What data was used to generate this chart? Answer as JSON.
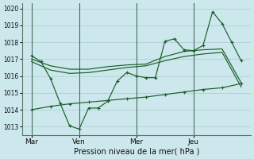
{
  "xlabel": "Pression niveau de la mer( hPa )",
  "bg_color": "#cce8ec",
  "grid_color": "#b0ced4",
  "line_color": "#1a5e2a",
  "ylim": [
    1012.5,
    1020.3
  ],
  "xtick_labels": [
    "Mar",
    "Ven",
    "Mer",
    "Jeu"
  ],
  "xtick_positions": [
    0.5,
    3.0,
    6.0,
    9.0
  ],
  "ytick_vals": [
    1013,
    1014,
    1015,
    1016,
    1017,
    1018,
    1019,
    1020
  ],
  "vlines_x": [
    0.5,
    3.0,
    6.0,
    9.0
  ],
  "series1_x": [
    0.5,
    1.0,
    1.5,
    2.0,
    2.5,
    3.0,
    3.5,
    4.0,
    4.5,
    5.0,
    5.5,
    6.0,
    6.5,
    7.0,
    7.5,
    8.0,
    8.5,
    9.0,
    9.5,
    10.0,
    10.5,
    11.0,
    11.5
  ],
  "series1_y": [
    1017.2,
    1016.85,
    1015.85,
    1014.4,
    1013.05,
    1012.85,
    1014.1,
    1014.1,
    1014.5,
    1015.7,
    1016.2,
    1016.0,
    1015.9,
    1015.9,
    1018.05,
    1018.2,
    1017.55,
    1017.5,
    1017.8,
    1019.8,
    1019.1,
    1018.0,
    1016.9
  ],
  "series2_x": [
    0.5,
    1.5,
    2.5,
    3.5,
    4.5,
    5.5,
    6.5,
    7.5,
    8.5,
    9.5,
    10.5,
    11.5
  ],
  "series2_y": [
    1017.0,
    1016.6,
    1016.4,
    1016.4,
    1016.55,
    1016.65,
    1016.7,
    1017.15,
    1017.45,
    1017.55,
    1017.6,
    1015.6
  ],
  "series3_x": [
    0.5,
    1.5,
    2.5,
    3.5,
    4.5,
    5.5,
    6.5,
    7.5,
    8.5,
    9.5,
    10.5,
    11.5
  ],
  "series3_y": [
    1016.85,
    1016.35,
    1016.15,
    1016.2,
    1016.35,
    1016.5,
    1016.6,
    1016.9,
    1017.15,
    1017.3,
    1017.4,
    1015.35
  ],
  "series4_x": [
    0.5,
    1.5,
    2.5,
    3.5,
    4.5,
    5.5,
    6.5,
    7.5,
    8.5,
    9.5,
    10.5,
    11.5
  ],
  "series4_y": [
    1014.0,
    1014.2,
    1014.35,
    1014.45,
    1014.55,
    1014.65,
    1014.75,
    1014.9,
    1015.05,
    1015.2,
    1015.3,
    1015.55
  ]
}
